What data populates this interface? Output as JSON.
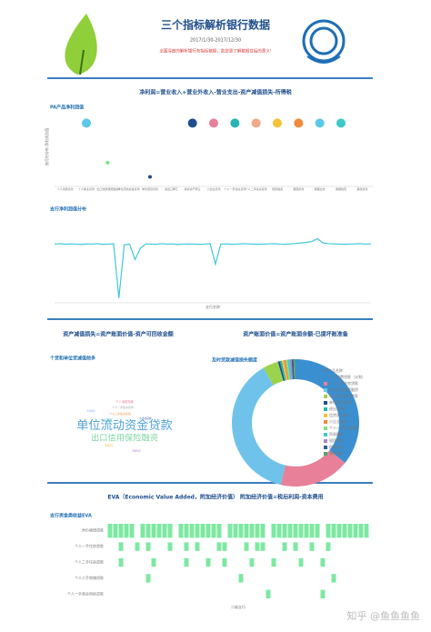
{
  "header": {
    "title": "三个指标解析银行数据",
    "date": "2017/1/30-2017/12/30",
    "subtitle": "全面深度的解析银行各指标数据，助您更了解数据背后的意义!"
  },
  "sections": [
    "净利润=营业收入+营业外收入-营业支出-资产减值损失-所得税",
    "资产减值损失=资产账面价值-资产可回收金额",
    "资产账面价值=资产账面余额-已提坏账准备",
    "EVA（Economic Value Added，附加经济价值） 附加经济价值=税后利润-资本费用"
  ],
  "watermark": "知乎 @鱼鱼鱼鱼",
  "chart_data": [
    {
      "type": "dot",
      "title": "PA产品净利润值",
      "y_label": "按月份分布 净利润总值",
      "ylim": [
        0,
        100
      ],
      "categories": [
        "个人消费贷款",
        "个人助业贷款",
        "出口信用保险融资",
        "单位流动资金贷款",
        "单位项目贷款",
        "进出口押汇",
        "信贷资产转让",
        "小企业贷款",
        "个人一手住房贷款",
        "个人二手住房贷款",
        "贸易融资",
        "银团贷款",
        "保理业务",
        "票据贴现",
        "其他贷款"
      ],
      "values": [
        null,
        80,
        30,
        null,
        12,
        null,
        80,
        80,
        80,
        80,
        80,
        80,
        80,
        80,
        null
      ],
      "colors": [
        null,
        "#5bc8ea",
        "#7ee07e",
        null,
        "#1f4e8c",
        null,
        "#1f4e8c",
        "#e8809a",
        "#27b3b3",
        "#f2a98a",
        "#f2c23a",
        "#f08a3c",
        "#5bc8ea",
        "#3ec9c9",
        null
      ]
    },
    {
      "type": "line",
      "title": "支行净利润值分布",
      "x_label": "支行名称",
      "color": "#3ec9d6",
      "ylim": [
        -260,
        120
      ],
      "values": [
        0,
        2,
        -1,
        1,
        0,
        -2,
        1,
        0,
        2,
        -1,
        0,
        1,
        -250,
        -3,
        0,
        -72,
        -20,
        1,
        0,
        -1,
        2,
        0,
        1,
        -2,
        0,
        1,
        0,
        -1,
        0,
        2,
        -93,
        0,
        1,
        -1,
        0,
        2,
        1,
        0,
        -1,
        0,
        1,
        2,
        0,
        -1,
        1,
        3,
        5,
        8,
        12,
        25,
        6,
        2,
        1,
        0,
        -1,
        0,
        1,
        2,
        0,
        1
      ]
    },
    {
      "type": "wordcloud",
      "title": "个贷和单位贷减值前多",
      "categories": [
        "单位流动资金贷款",
        "出口信用保险融资",
        "个人消费贷款",
        "个人一手住房贷款",
        "个人二手住房贷款",
        "进出口押汇",
        "小企业贷款",
        "贸易融资",
        "银团贷款",
        "票据贴现"
      ],
      "values": [
        40,
        28,
        10,
        9,
        9,
        8,
        8,
        7,
        7,
        7
      ],
      "colors": [
        "#4fa3d9",
        "#7ed6a2",
        "#e8809a",
        "#9aa0a6",
        "#f08a3c",
        "#27b3b3",
        "#1f4e8c",
        "#8ab4e8",
        "#f2c23a",
        "#b084cc"
      ]
    },
    {
      "type": "pie",
      "title": "及时贷款减值损失额度",
      "legend_title": "PA产品名称",
      "categories": [
        "个人消费贷款（计划）",
        "个人二手住房贷款",
        "出口信用保险融资",
        "单位流动资金贷款",
        "单位项目贷款",
        "进出口押汇",
        "信贷资产转让",
        "小企业贷款",
        "个人一手住房贷款",
        "贸易融资",
        "银团贷款",
        "保理业务",
        "其他贷款"
      ],
      "values": [
        36,
        18,
        38,
        4,
        0.5,
        0.5,
        0.5,
        0.5,
        0.5,
        0.5,
        0.5,
        0.5,
        0.5
      ],
      "colors": [
        "#3a8fd0",
        "#e8809a",
        "#6fc3ea",
        "#9bd34f",
        "#1f4e8c",
        "#27b3b3",
        "#f2c23a",
        "#f08a3c",
        "#7ee07e",
        "#3ec9c9",
        "#b084cc",
        "#2b5f9e",
        "#5aa36a"
      ]
    },
    {
      "type": "heatmap",
      "title": "支行资金类收益EVA",
      "x_label": "二级支行",
      "color": "#7ee8a2",
      "rows": [
        "异价格增贷款",
        "个人一手住房贷款",
        "个人二手住房贷款",
        "个人二手商铺贷款",
        "个人一手商业用房贷款"
      ],
      "values": [
        [
          1,
          1,
          1,
          1,
          1,
          0,
          1,
          1,
          1,
          1,
          1,
          1,
          0,
          1,
          1,
          1,
          1,
          1,
          1,
          1,
          1,
          0,
          1,
          1,
          1,
          1,
          1,
          1,
          1,
          0,
          1,
          1,
          1,
          1,
          1,
          1,
          1,
          1,
          1,
          0,
          1,
          1,
          1,
          1,
          1,
          1,
          1,
          1
        ],
        [
          0,
          0,
          1,
          0,
          0,
          1,
          0,
          1,
          0,
          0,
          0,
          1,
          0,
          0,
          1,
          0,
          1,
          0,
          0,
          0,
          1,
          1,
          0,
          0,
          0,
          1,
          0,
          1,
          1,
          0,
          0,
          0,
          1,
          0,
          1,
          0,
          0,
          1,
          0,
          0,
          1,
          0,
          0,
          0,
          0,
          0,
          0,
          0
        ],
        [
          0,
          0,
          1,
          0,
          0,
          0,
          0,
          0,
          1,
          0,
          0,
          0,
          0,
          0,
          1,
          0,
          0,
          0,
          1,
          0,
          0,
          1,
          0,
          0,
          0,
          0,
          1,
          0,
          0,
          0,
          1,
          0,
          0,
          0,
          0,
          1,
          0,
          0,
          0,
          1,
          0,
          0,
          0,
          0,
          0,
          0,
          0,
          0
        ],
        [
          0,
          0,
          0,
          0,
          0,
          0,
          0,
          1,
          0,
          0,
          0,
          0,
          0,
          0,
          0,
          0,
          0,
          0,
          0,
          0,
          0,
          0,
          0,
          0,
          1,
          0,
          0,
          0,
          0,
          0,
          0,
          0,
          0,
          0,
          0,
          0,
          0,
          0,
          0,
          0,
          0,
          1,
          0,
          0,
          0,
          0,
          0,
          0
        ],
        [
          0,
          0,
          0,
          0,
          0,
          0,
          0,
          0,
          0,
          0,
          0,
          0,
          0,
          0,
          0,
          0,
          0,
          0,
          0,
          0,
          0,
          0,
          0,
          0,
          0,
          0,
          0,
          0,
          0,
          1,
          0,
          0,
          0,
          0,
          0,
          0,
          0,
          0,
          0,
          1,
          0,
          0,
          0,
          0,
          0,
          0,
          0,
          0
        ]
      ]
    }
  ]
}
